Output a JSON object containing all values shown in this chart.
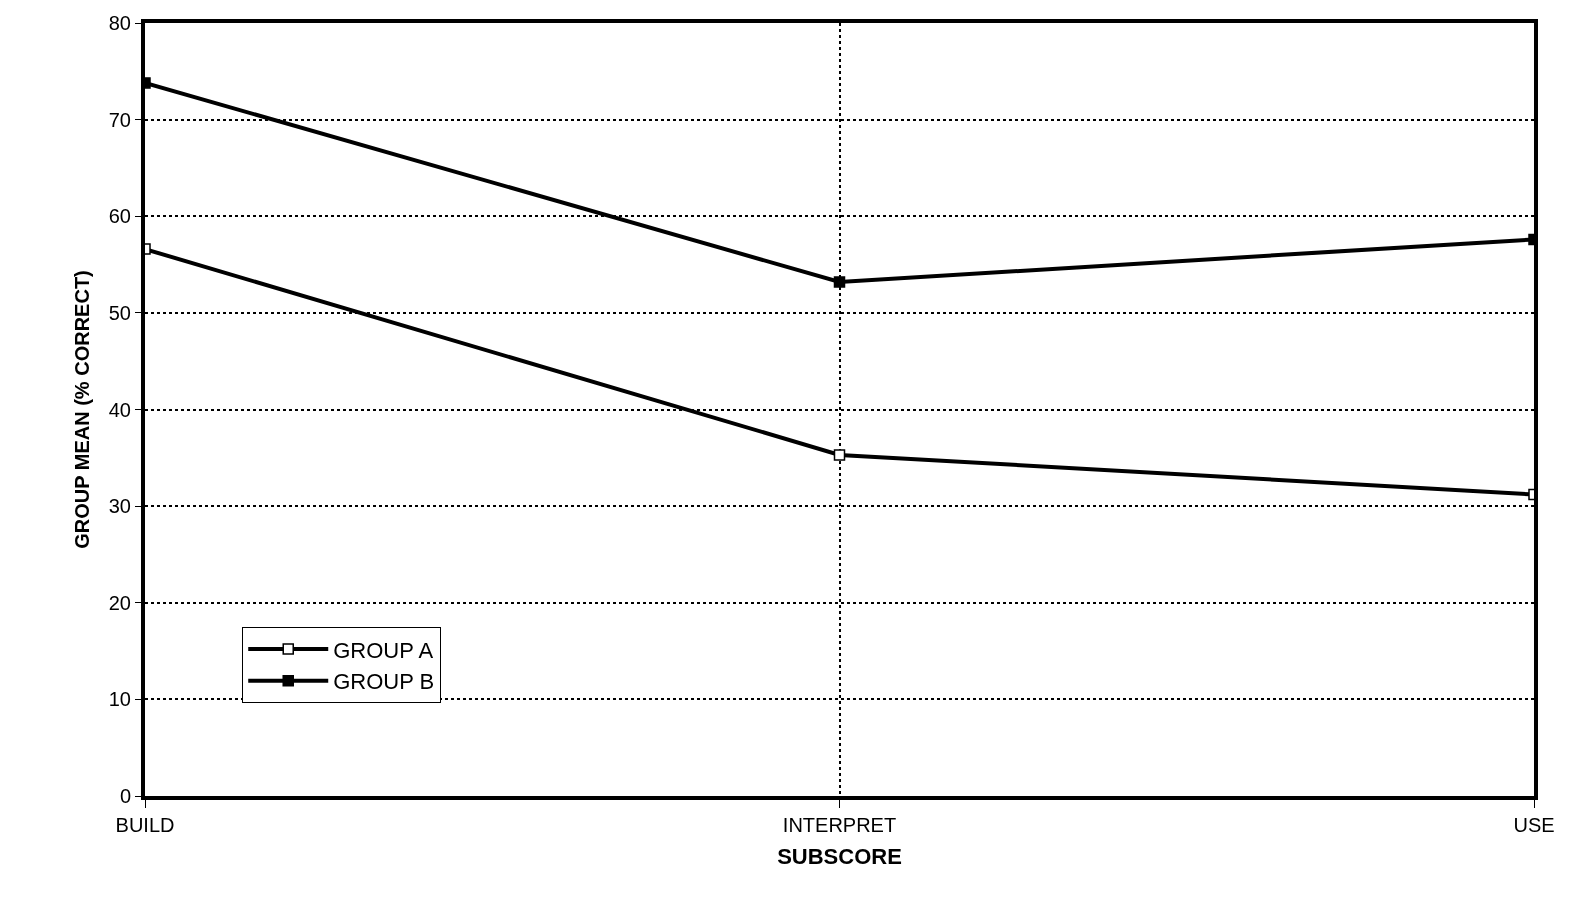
{
  "chart_data": {
    "type": "line",
    "xlabel": "SUBSCORE",
    "ylabel": "GROUP MEAN (% CORRECT)",
    "categories": [
      "BUILD",
      "INTERPRET",
      "USE"
    ],
    "series": [
      {
        "name": "GROUP A",
        "color": "#000000",
        "values": [
          56.6,
          35.3,
          31.2
        ]
      },
      {
        "name": "GROUP B",
        "color": "#000000",
        "values": [
          73.8,
          53.2,
          57.6
        ]
      }
    ],
    "ylim": [
      0,
      80
    ],
    "yticks": [
      0,
      10,
      20,
      30,
      40,
      50,
      60,
      70,
      80
    ],
    "grid": true,
    "legend": "bottom left",
    "marker": "square",
    "line_style": "solid"
  }
}
